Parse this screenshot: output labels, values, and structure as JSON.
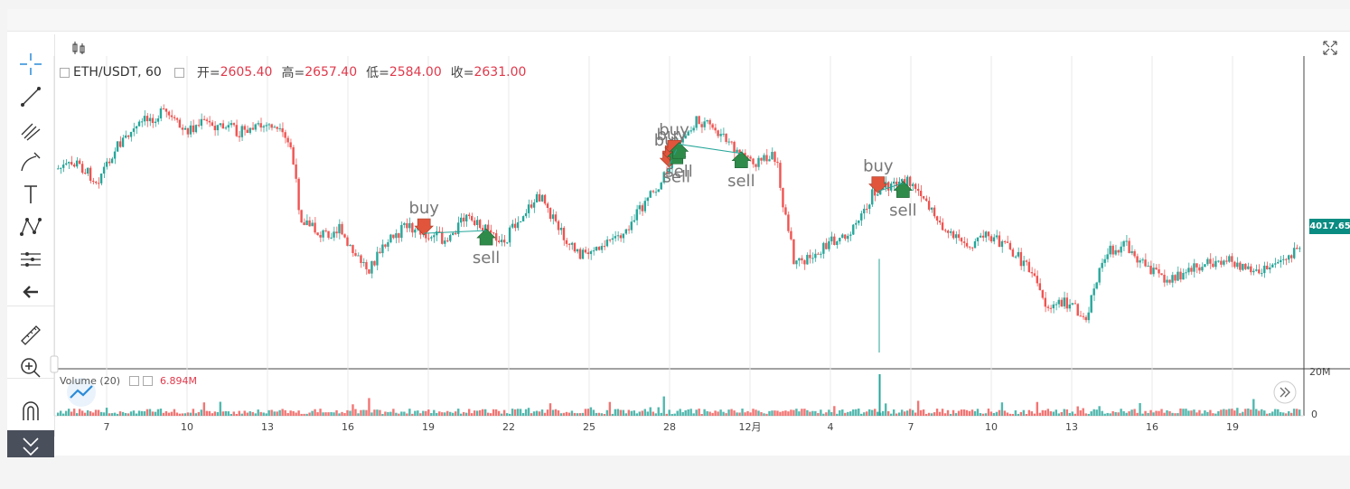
{
  "legend": {
    "symbol": "ETH/USDT, 60",
    "open_label": "开=",
    "open": "2605.40",
    "high_label": "高=",
    "high": "2657.40",
    "low_label": "低=",
    "low": "2584.00",
    "close_label": "收=",
    "close": "2631.00"
  },
  "volume_legend": {
    "name": "Volume (20)",
    "value": "6.894M"
  },
  "last_price": "4017.65",
  "volume_axis": [
    "20M",
    "0"
  ],
  "colors": {
    "up": "#26a69a",
    "down": "#ef5350",
    "price_box": "#0a8c82",
    "grid": "#e9e9e9",
    "text": "#444444"
  },
  "tools": [
    "crosshair-icon",
    "line-icon",
    "fib-icon",
    "brush-icon",
    "text-icon",
    "pattern-icon",
    "measure-lines-icon",
    "back-arrow-icon",
    "ruler-icon",
    "zoom-icon",
    "magnet-icon",
    "hide-icon"
  ],
  "chart_data": {
    "type": "candlestick",
    "x_ticks": [
      "7",
      "10",
      "13",
      "16",
      "19",
      "22",
      "25",
      "28",
      "12月",
      "4",
      "7",
      "10",
      "13",
      "16",
      "19"
    ],
    "price_path": [
      [
        0,
        0.35
      ],
      [
        0.02,
        0.33
      ],
      [
        0.04,
        0.4
      ],
      [
        0.06,
        0.26
      ],
      [
        0.09,
        0.15
      ],
      [
        0.11,
        0.12
      ],
      [
        0.13,
        0.2
      ],
      [
        0.15,
        0.16
      ],
      [
        0.17,
        0.18
      ],
      [
        0.19,
        0.2
      ],
      [
        0.22,
        0.17
      ],
      [
        0.24,
        0.26
      ],
      [
        0.25,
        0.55
      ],
      [
        0.27,
        0.62
      ],
      [
        0.29,
        0.6
      ],
      [
        0.3,
        0.68
      ],
      [
        0.32,
        0.76
      ],
      [
        0.34,
        0.65
      ],
      [
        0.36,
        0.58
      ],
      [
        0.38,
        0.62
      ],
      [
        0.4,
        0.64
      ],
      [
        0.42,
        0.55
      ],
      [
        0.44,
        0.6
      ],
      [
        0.46,
        0.65
      ],
      [
        0.48,
        0.53
      ],
      [
        0.5,
        0.45
      ],
      [
        0.51,
        0.56
      ],
      [
        0.53,
        0.68
      ],
      [
        0.54,
        0.7
      ],
      [
        0.56,
        0.66
      ],
      [
        0.58,
        0.62
      ],
      [
        0.6,
        0.52
      ],
      [
        0.62,
        0.42
      ],
      [
        0.64,
        0.25
      ],
      [
        0.66,
        0.15
      ],
      [
        0.68,
        0.2
      ],
      [
        0.7,
        0.28
      ],
      [
        0.72,
        0.32
      ],
      [
        0.74,
        0.3
      ],
      [
        0.75,
        0.55
      ],
      [
        0.76,
        0.75
      ],
      [
        0.78,
        0.7
      ],
      [
        0.8,
        0.64
      ],
      [
        0.82,
        0.6
      ],
      [
        0.84,
        0.45
      ],
      [
        0.86,
        0.42
      ],
      [
        0.88,
        0.4
      ],
      [
        0.9,
        0.52
      ],
      [
        0.92,
        0.63
      ],
      [
        0.94,
        0.66
      ],
      [
        0.96,
        0.62
      ],
      [
        0.98,
        0.68
      ],
      [
        1.0,
        0.75
      ],
      [
        1.02,
        0.92
      ],
      [
        1.04,
        0.9
      ],
      [
        1.06,
        0.95
      ],
      [
        1.08,
        0.7
      ],
      [
        1.1,
        0.66
      ],
      [
        1.12,
        0.74
      ],
      [
        1.14,
        0.8
      ],
      [
        1.16,
        0.78
      ],
      [
        1.18,
        0.74
      ],
      [
        1.2,
        0.72
      ],
      [
        1.22,
        0.75
      ],
      [
        1.24,
        0.78
      ],
      [
        1.26,
        0.72
      ],
      [
        1.28,
        0.68
      ]
    ],
    "signals": [
      {
        "label": "buy",
        "type": "buy",
        "i": 0.295
      },
      {
        "label": "sell",
        "type": "sell",
        "i": 0.345
      },
      {
        "label": "buy",
        "type": "buy",
        "i": 0.492
      },
      {
        "label": "buy",
        "type": "buy",
        "i": 0.494
      },
      {
        "label": "buy",
        "type": "buy",
        "i": 0.496
      },
      {
        "label": "sell",
        "type": "sell",
        "i": 0.498
      },
      {
        "label": "sell",
        "type": "sell",
        "i": 0.5
      },
      {
        "label": "sell",
        "type": "sell",
        "i": 0.55
      },
      {
        "label": "buy",
        "type": "buy",
        "i": 0.66
      },
      {
        "label": "sell",
        "type": "sell",
        "i": 0.68
      }
    ]
  }
}
